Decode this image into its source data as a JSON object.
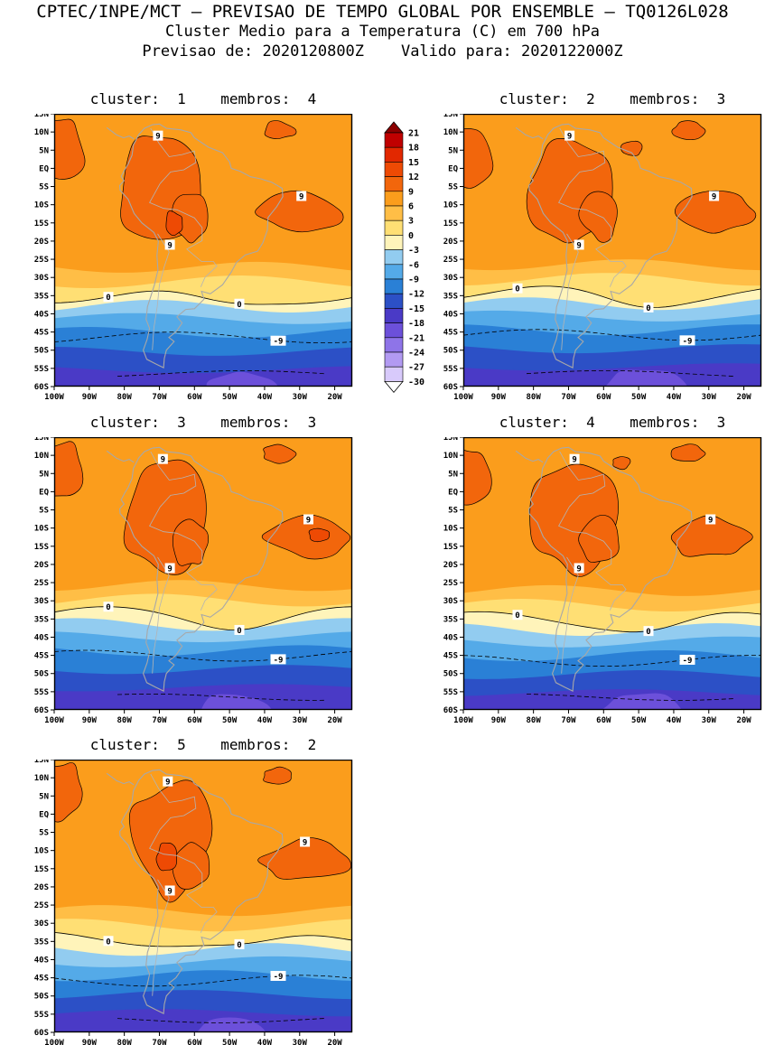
{
  "header": {
    "title": "CPTEC/INPE/MCT — PREVISAO DE TEMPO GLOBAL POR ENSEMBLE — TQ0126L028",
    "subtitle": "Cluster Medio para a Temperatura (C) em 700 hPa",
    "forecast_line": "Previsao de: 2020120800Z    Valido para: 2020122000Z"
  },
  "chart_data": {
    "type": "heatmap",
    "title": "Cluster Medio para a Temperatura (C) em 700 hPa",
    "center": "CPTEC/INPE/MCT",
    "product": "PREVISAO DE TEMPO GLOBAL POR ENSEMBLE",
    "model": "TQ0126L028",
    "variable": "Temperatura",
    "units": "C",
    "level": "700 hPa",
    "init_time": "2020120800Z",
    "valid_time": "2020122000Z",
    "panels": [
      {
        "cluster": 1,
        "membros": 4,
        "title": "cluster:  1    membros:  4"
      },
      {
        "cluster": 2,
        "membros": 3,
        "title": "cluster:  2    membros:  3"
      },
      {
        "cluster": 3,
        "membros": 3,
        "title": "cluster:  3    membros:  3"
      },
      {
        "cluster": 4,
        "membros": 3,
        "title": "cluster:  4    membros:  3"
      },
      {
        "cluster": 5,
        "membros": 2,
        "title": "cluster:  5    membros:  2"
      }
    ],
    "colorbar": {
      "levels": [
        21,
        18,
        15,
        12,
        9,
        6,
        3,
        0,
        -3,
        -6,
        -9,
        -12,
        -15,
        -18,
        -21,
        -24,
        -27,
        -30
      ],
      "segment_colors": [
        "#C00000",
        "#E22800",
        "#EE4A04",
        "#F2660C",
        "#FB9D1C",
        "#FFBE46",
        "#FFDF74",
        "#FFF4BA",
        "#92CCF0",
        "#54AAE8",
        "#2A80D6",
        "#2C50C6",
        "#4A3AC6",
        "#6C50DA",
        "#8E74E8",
        "#B29AF2",
        "#D8CAFB"
      ],
      "above_color": "#8C0000",
      "below_color": "#FFFFFF"
    },
    "axes": {
      "lat_ticks": [
        "15N",
        "10N",
        "5N",
        "EQ",
        "5S",
        "10S",
        "15S",
        "20S",
        "25S",
        "30S",
        "35S",
        "40S",
        "45S",
        "50S",
        "55S",
        "60S"
      ],
      "lon_ticks": [
        "100W",
        "90W",
        "80W",
        "70W",
        "60W",
        "50W",
        "40W",
        "30W",
        "20W"
      ],
      "lat_range": [
        15,
        -60
      ],
      "lon_range": [
        -100,
        -15
      ]
    },
    "contour_labels": [
      "9",
      "0",
      "-9"
    ],
    "contour_interval": 9,
    "shading_interval": 3,
    "coastline_color": "#A8A8A8",
    "field_description": "Warm (9 to 15 C) orange-red cells over tropical South America and adjacent Atlantic; temperature decreasing southward through yellow band near 0 C around 30-35S to blue and violet bands (-9 to -18 C) near 50-60S"
  }
}
